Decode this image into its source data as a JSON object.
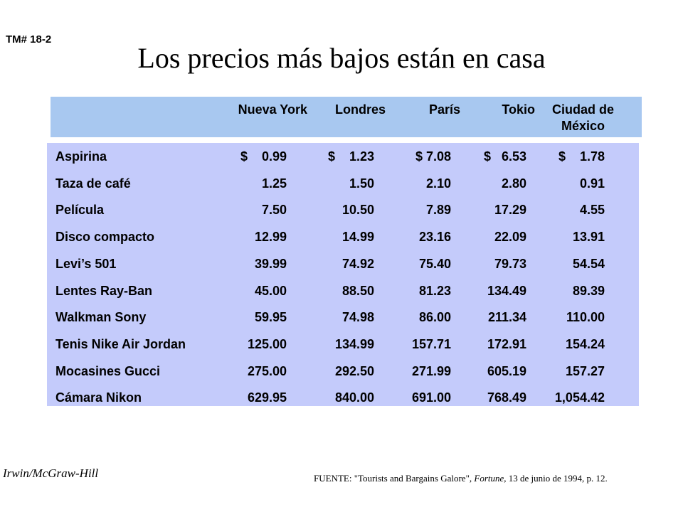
{
  "slide_label": "TM# 18-2",
  "title": "Los precios más bajos están en casa",
  "columns": [
    "Nueva York",
    "Londres",
    "París",
    "Tokio",
    "Ciudad de México"
  ],
  "rows": [
    {
      "item": "Aspirina",
      "values": [
        "$    0.99",
        "$    1.23",
        "$ 7.08",
        "$   6.53",
        "$    1.78"
      ]
    },
    {
      "item": "Taza de café",
      "values": [
        "1.25",
        "1.50",
        "2.10",
        "2.80",
        "0.91"
      ]
    },
    {
      "item": "Película",
      "values": [
        "7.50",
        "10.50",
        "7.89",
        "17.29",
        "4.55"
      ]
    },
    {
      "item": "Disco compacto",
      "values": [
        "12.99",
        "14.99",
        "23.16",
        "22.09",
        "13.91"
      ]
    },
    {
      "item": "Levi’s 501",
      "values": [
        "39.99",
        "74.92",
        "75.40",
        "79.73",
        "54.54"
      ]
    },
    {
      "item": "Lentes Ray-Ban",
      "values": [
        "45.00",
        "88.50",
        "81.23",
        "134.49",
        "89.39"
      ]
    },
    {
      "item": "Walkman Sony",
      "values": [
        "59.95",
        "74.98",
        "86.00",
        "211.34",
        "110.00"
      ]
    },
    {
      "item": "Tenis Nike Air Jordan",
      "values": [
        "125.00",
        "134.99",
        "157.71",
        "172.91",
        "154.24"
      ]
    },
    {
      "item": "Mocasines Gucci",
      "values": [
        "275.00",
        "292.50",
        "271.99",
        "605.19",
        "157.27"
      ]
    },
    {
      "item": "Cámara Nikon",
      "values": [
        "629.95",
        "840.00",
        "691.00",
        "768.49",
        "1,054.42"
      ]
    }
  ],
  "footer": {
    "publisher": "Irwin/McGraw-Hill",
    "source_prefix": "FUENTE: \"Tourists and Bargains Galore\", ",
    "source_journal": "Fortune",
    "source_suffix": ", 13 de junio de 1994, p. 12."
  },
  "colors": {
    "header_band": "#a8c8f0",
    "body_band": "#c4cbfb"
  }
}
